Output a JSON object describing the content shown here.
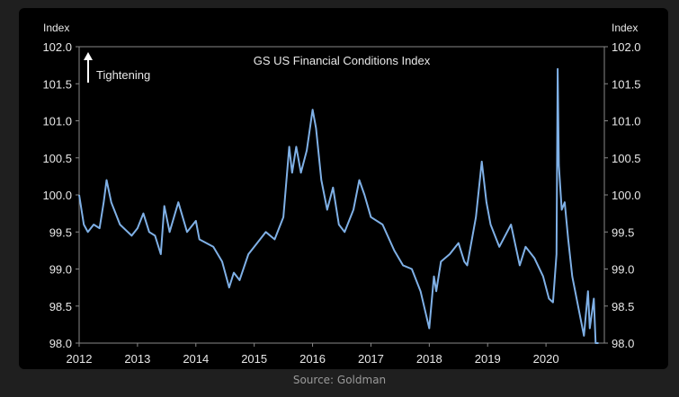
{
  "source": "Source: Goldman",
  "chart_data": {
    "type": "line",
    "title": "GS US Financial Conditions Index",
    "annotation": "Tightening",
    "ylabel_left": "Index",
    "ylabel_right": "Index",
    "ylim": [
      98.0,
      102.0
    ],
    "yticks": [
      "98.0",
      "98.5",
      "99.0",
      "99.5",
      "100.0",
      "100.5",
      "101.0",
      "101.5",
      "102.0"
    ],
    "xlim": [
      2012,
      2021
    ],
    "xticks": [
      "2012",
      "2013",
      "2014",
      "2015",
      "2016",
      "2017",
      "2018",
      "2019",
      "2020"
    ],
    "grid": false,
    "line_color": "#7fb0e6",
    "series": [
      {
        "x": [
          2012.0,
          2012.08,
          2012.15,
          2012.25,
          2012.35,
          2012.42,
          2012.47,
          2012.55,
          2012.7,
          2012.9,
          2013.0,
          2013.1,
          2013.2,
          2013.3,
          2013.4,
          2013.46,
          2013.55,
          2013.7,
          2013.85,
          2014.0,
          2014.06,
          2014.3,
          2014.45,
          2014.57,
          2014.65,
          2014.75,
          2014.9,
          2015.0,
          2015.2,
          2015.35,
          2015.5,
          2015.6,
          2015.65,
          2015.72,
          2015.8,
          2015.9,
          2016.0,
          2016.06,
          2016.15,
          2016.25,
          2016.35,
          2016.45,
          2016.55,
          2016.7,
          2016.8,
          2016.89,
          2017.0,
          2017.2,
          2017.4,
          2017.55,
          2017.7,
          2017.85,
          2018.0,
          2018.08,
          2018.12,
          2018.2,
          2018.35,
          2018.5,
          2018.6,
          2018.65,
          2018.8,
          2018.9,
          2018.98,
          2019.05,
          2019.2,
          2019.4,
          2019.55,
          2019.65,
          2019.8,
          2019.95,
          2020.05,
          2020.12,
          2020.18,
          2020.2,
          2020.22,
          2020.27,
          2020.32,
          2020.38,
          2020.45,
          2020.55,
          2020.65,
          2020.72,
          2020.75,
          2020.82,
          2020.85,
          2020.9
        ],
        "y": [
          100.0,
          99.6,
          99.5,
          99.6,
          99.55,
          99.9,
          100.2,
          99.9,
          99.6,
          99.45,
          99.55,
          99.75,
          99.5,
          99.45,
          99.2,
          99.85,
          99.5,
          99.9,
          99.5,
          99.65,
          99.4,
          99.3,
          99.1,
          98.75,
          98.95,
          98.85,
          99.2,
          99.3,
          99.5,
          99.4,
          99.7,
          100.65,
          100.3,
          100.65,
          100.3,
          100.6,
          101.15,
          100.9,
          100.2,
          99.8,
          100.1,
          99.6,
          99.5,
          99.8,
          100.2,
          100.0,
          99.7,
          99.6,
          99.25,
          99.05,
          99.0,
          98.7,
          98.2,
          98.9,
          98.7,
          99.1,
          99.2,
          99.35,
          99.1,
          99.05,
          99.7,
          100.45,
          99.9,
          99.6,
          99.3,
          99.6,
          99.05,
          99.3,
          99.15,
          98.9,
          98.6,
          98.55,
          99.2,
          101.7,
          100.4,
          99.8,
          99.9,
          99.4,
          98.9,
          98.5,
          98.1,
          98.7,
          98.2,
          98.6,
          98.0,
          98.0
        ]
      }
    ]
  }
}
